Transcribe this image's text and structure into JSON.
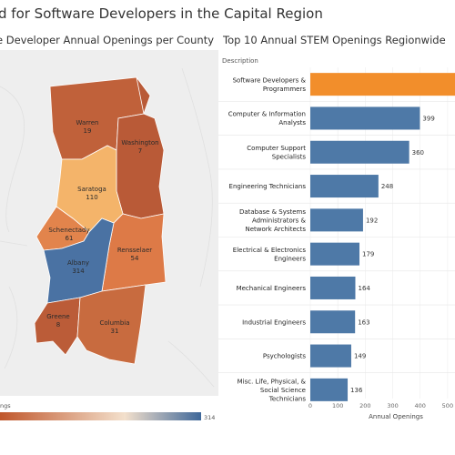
{
  "title": "d for Software Developers in the Capital Region",
  "map_title": "e Developer Annual Openings per County",
  "bar_title": "Top 10 Annual  STEM Openings Regionwide",
  "colors": {
    "bar_highlight": "#f28e2b",
    "bar_default": "#4e79a7"
  },
  "chart_data": [
    {
      "type": "map",
      "counties": [
        {
          "name": "Warren",
          "value": "19",
          "color": "#c0613a"
        },
        {
          "name": "Washington",
          "value": "7",
          "color": "#b95a37"
        },
        {
          "name": "Saratoga",
          "value": "110",
          "color": "#f4b46a"
        },
        {
          "name": "Schenectady",
          "value": "61",
          "color": "#e2844c"
        },
        {
          "name": "Rensselaer",
          "value": "54",
          "color": "#dd7a47"
        },
        {
          "name": "Albany",
          "value": "314",
          "color": "#4a72a3"
        },
        {
          "name": "Greene",
          "value": "8",
          "color": "#bb5c38"
        },
        {
          "name": "Columbia",
          "value": "31",
          "color": "#c86b3f"
        }
      ],
      "legend": {
        "label": "ngs",
        "max_label": "314",
        "color_range": [
          "#c0572c",
          "#f3e0cc",
          "#3e6799"
        ]
      }
    },
    {
      "type": "bar",
      "orientation": "horizontal",
      "column_header": "Description",
      "categories": [
        [
          "Software Developers &",
          "Programmers"
        ],
        [
          "Computer & Information",
          "Analysts"
        ],
        [
          "Computer Support",
          "Specialists"
        ],
        [
          "Engineering Technicians"
        ],
        [
          "Database & Systems",
          "Administrators &",
          "Network Architects"
        ],
        [
          "Electrical & Electronics",
          "Engineers"
        ],
        [
          "Mechanical Engineers"
        ],
        [
          "Industrial Engineers"
        ],
        [
          "Psychologists"
        ],
        [
          "Misc. Life, Physical, &",
          "Social Science",
          "Technicians"
        ]
      ],
      "values": [
        560,
        399,
        360,
        248,
        192,
        179,
        164,
        163,
        149,
        136
      ],
      "value_labels": [
        "",
        "399",
        "360",
        "248",
        "192",
        "179",
        "164",
        "163",
        "149",
        "136"
      ],
      "highlight_index": 0,
      "xlabel": "Annual Openings",
      "xticks": [
        "0",
        "100",
        "200",
        "300",
        "400",
        "500"
      ],
      "xlim": [
        0,
        560
      ]
    }
  ]
}
